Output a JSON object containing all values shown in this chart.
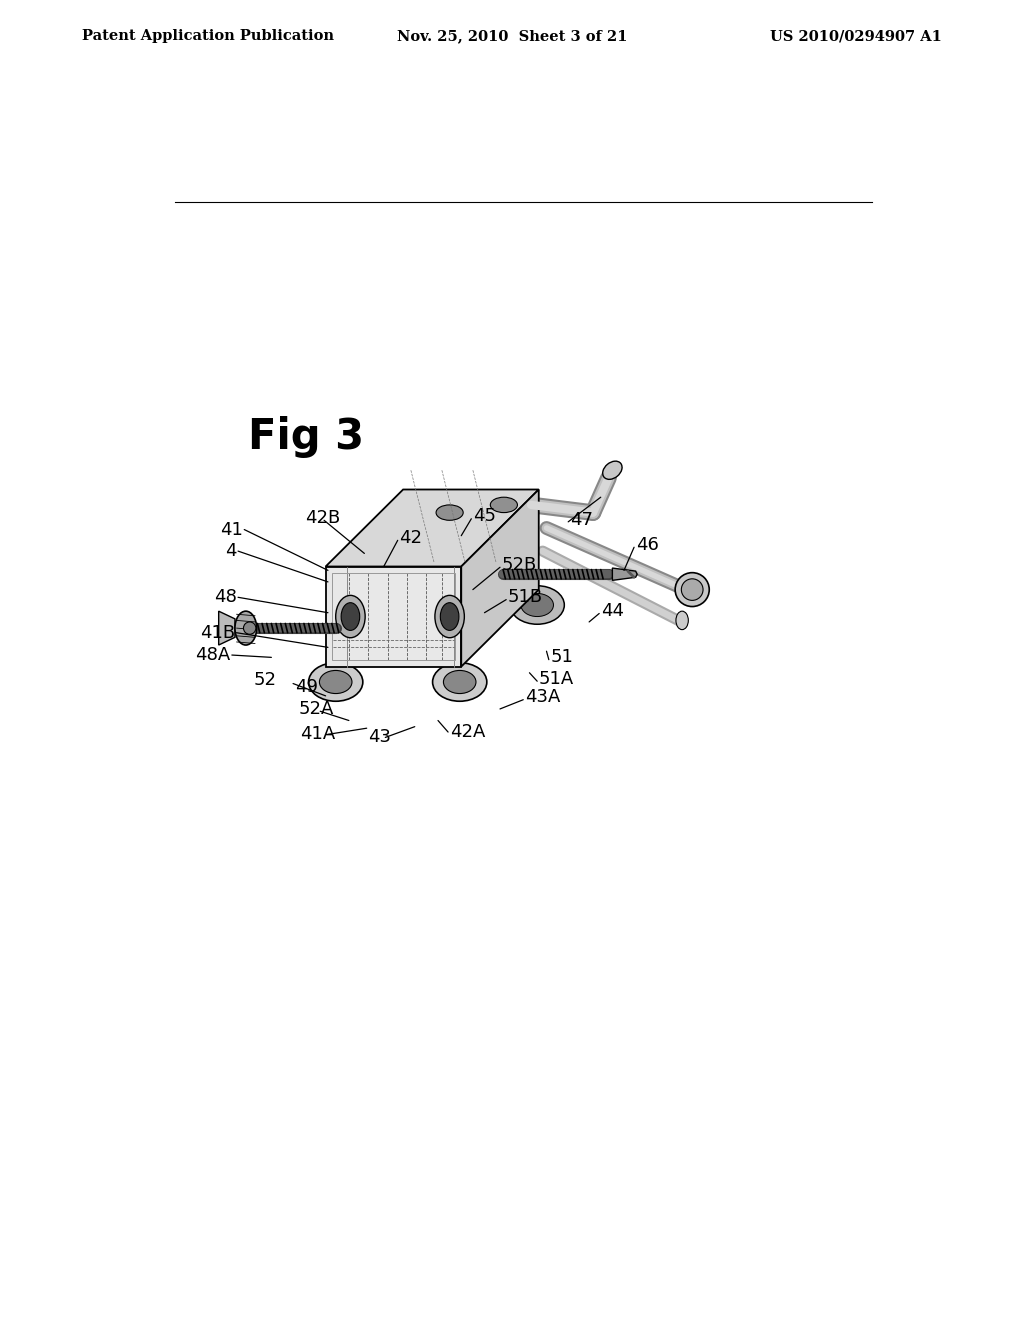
{
  "bg_color": "#ffffff",
  "header_left": "Patent Application Publication",
  "header_center": "Nov. 25, 2010  Sheet 3 of 21",
  "header_right": "US 2010/0294907 A1",
  "fig_label": "Fig 3",
  "header_fontsize": 10.5,
  "fig_label_fontsize": 30,
  "label_fontsize": 13
}
